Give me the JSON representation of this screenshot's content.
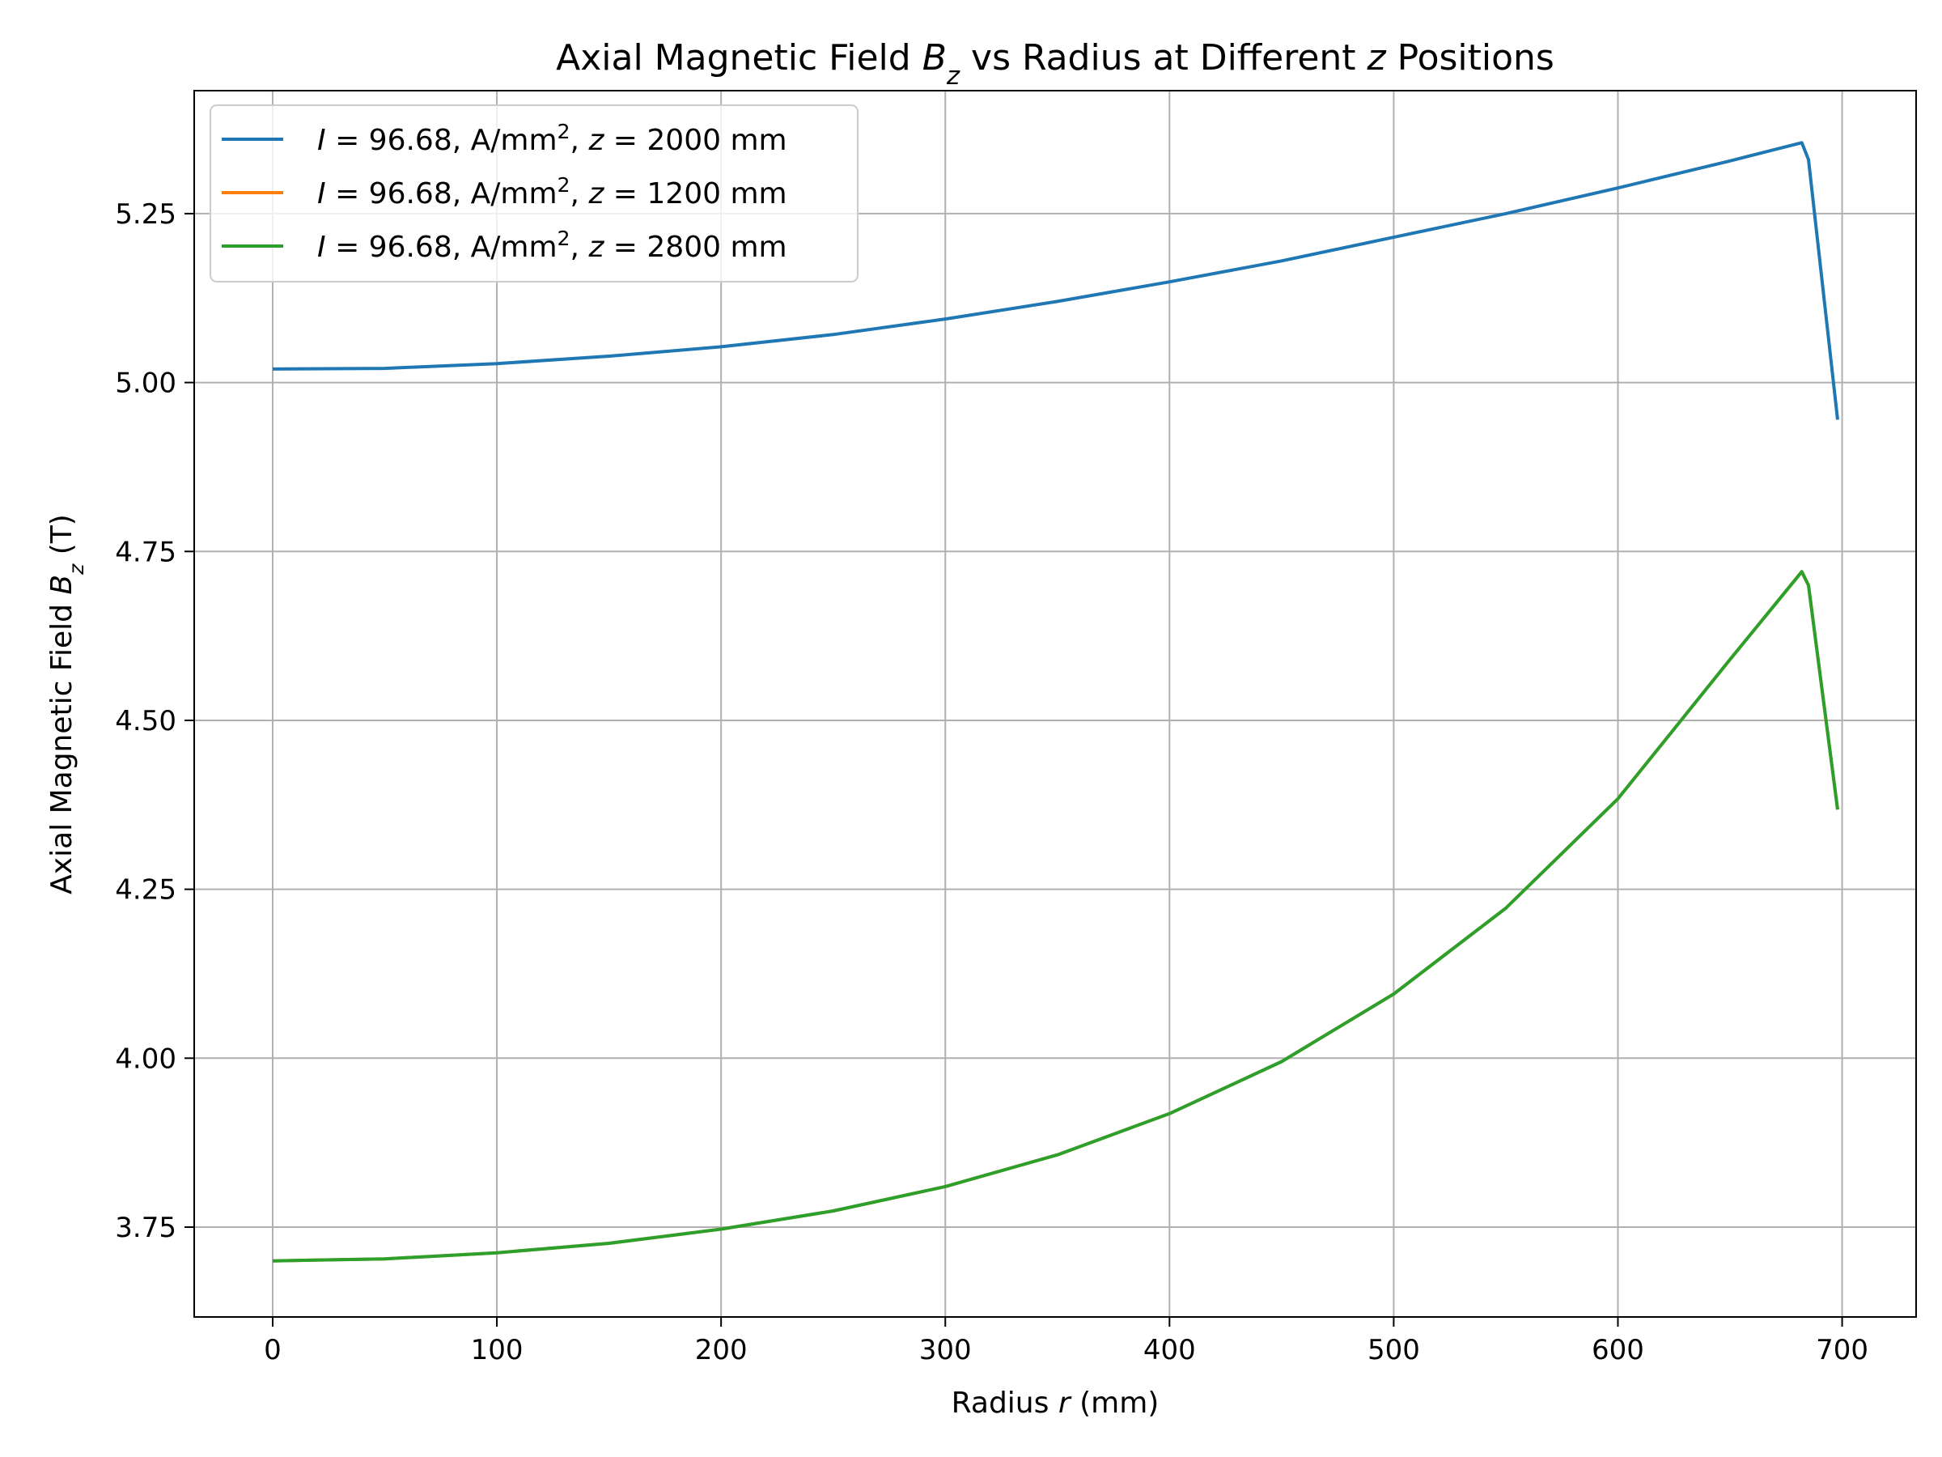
{
  "chart_data": {
    "type": "line",
    "title_parts": [
      "Axial Magnetic Field ",
      "B",
      "z",
      " vs Radius at Different ",
      "z",
      " Positions"
    ],
    "xlabel_parts": [
      "Radius ",
      "r",
      " (mm)"
    ],
    "ylabel_parts": [
      "Axial Magnetic Field ",
      "B",
      "z",
      " (T)"
    ],
    "xlim": [
      -35,
      733
    ],
    "ylim": [
      3.617,
      5.432
    ],
    "xticks": [
      0,
      100,
      200,
      300,
      400,
      500,
      600,
      700
    ],
    "xtick_labels": [
      "0",
      "100",
      "200",
      "300",
      "400",
      "500",
      "600",
      "700"
    ],
    "yticks": [
      3.75,
      4.0,
      4.25,
      4.5,
      4.75,
      5.0,
      5.25
    ],
    "ytick_labels": [
      "3.75",
      "4.00",
      "4.25",
      "4.50",
      "4.75",
      "5.00",
      "5.25"
    ],
    "grid": true,
    "legend_position": "upper-left",
    "series": [
      {
        "name_parts": [
          "I",
          " = 96.68, A/mm",
          "2",
          ",  ",
          "z",
          " = 2000 mm"
        ],
        "color": "#1f77b4",
        "x": [
          0,
          50,
          100,
          150,
          200,
          250,
          300,
          350,
          400,
          450,
          500,
          550,
          600,
          650,
          682,
          685,
          698
        ],
        "y": [
          5.02,
          5.021,
          5.028,
          5.039,
          5.053,
          5.071,
          5.094,
          5.12,
          5.149,
          5.18,
          5.215,
          5.25,
          5.288,
          5.328,
          5.355,
          5.33,
          4.945
        ]
      },
      {
        "name_parts": [
          "I",
          " = 96.68, A/mm",
          "2",
          ",  ",
          "z",
          " = 1200 mm"
        ],
        "color": "#ff7f0e",
        "x": [
          0,
          50,
          100,
          150,
          200,
          250,
          300,
          350,
          400,
          450,
          500,
          550,
          600,
          650,
          682,
          685,
          698
        ],
        "y": [
          3.7,
          3.703,
          3.712,
          3.726,
          3.747,
          3.774,
          3.81,
          3.857,
          3.918,
          3.995,
          4.095,
          4.222,
          4.384,
          4.59,
          4.72,
          4.7,
          4.368
        ]
      },
      {
        "name_parts": [
          "I",
          " = 96.68, A/mm",
          "2",
          ",  ",
          "z",
          " = 2800 mm"
        ],
        "color": "#2ca02c",
        "x": [
          0,
          50,
          100,
          150,
          200,
          250,
          300,
          350,
          400,
          450,
          500,
          550,
          600,
          650,
          682,
          685,
          698
        ],
        "y": [
          3.7,
          3.703,
          3.712,
          3.726,
          3.747,
          3.774,
          3.81,
          3.857,
          3.918,
          3.995,
          4.095,
          4.222,
          4.384,
          4.59,
          4.72,
          4.7,
          4.368
        ]
      }
    ]
  }
}
